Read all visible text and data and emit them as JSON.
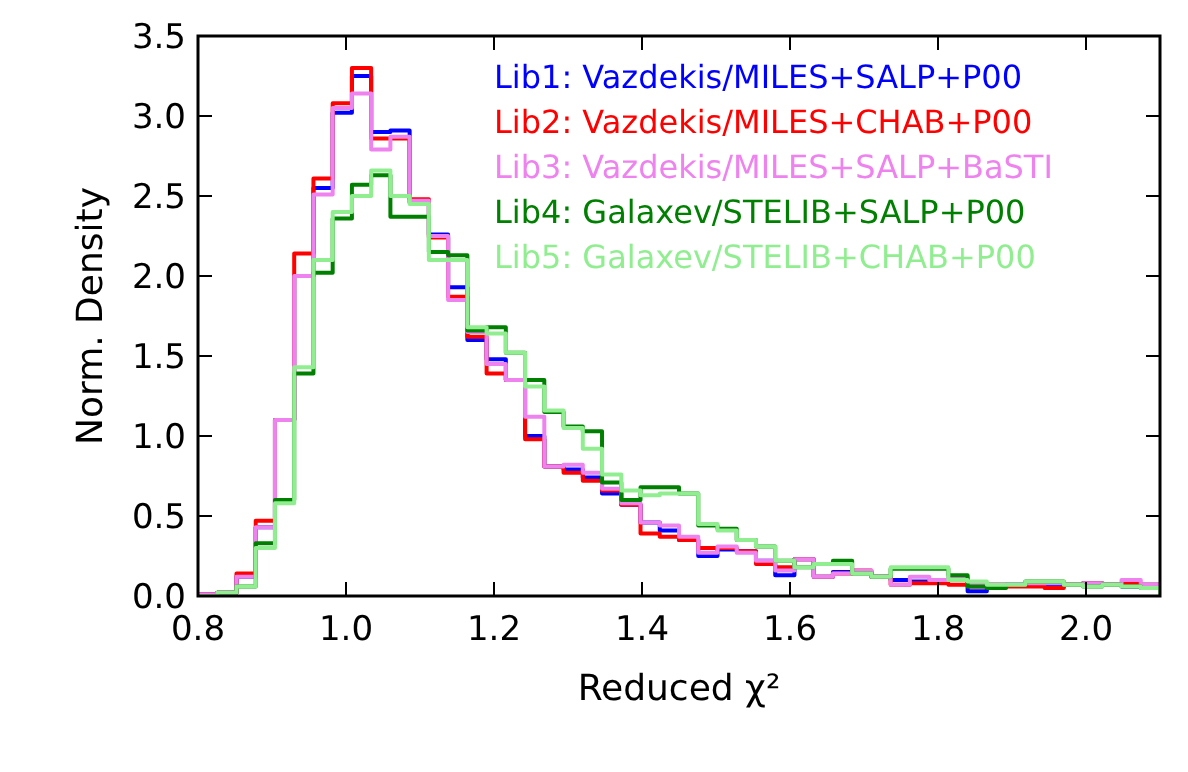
{
  "chart_data": {
    "type": "histogram",
    "xlabel": "Reduced χ²",
    "ylabel": "Norm. Density",
    "bins": [
      0.8,
      0.826,
      0.852,
      0.878,
      0.904,
      0.93,
      0.956,
      0.982,
      1.008,
      1.034,
      1.06,
      1.086,
      1.112,
      1.138,
      1.164,
      1.19,
      1.216,
      1.242,
      1.268,
      1.294,
      1.32,
      1.346,
      1.372,
      1.398,
      1.424,
      1.45,
      1.476,
      1.502,
      1.528,
      1.554,
      1.58,
      1.606,
      1.632,
      1.658,
      1.684,
      1.71,
      1.736,
      1.762,
      1.788,
      1.814,
      1.84,
      1.866,
      1.892,
      1.918,
      1.944,
      1.97,
      1.996,
      2.022,
      2.048,
      2.074,
      2.1
    ],
    "series": [
      {
        "name": "Lib1: Vazdekis/MILES+SALP+P00",
        "color": "#0000ff",
        "values": [
          0.01,
          0.02,
          0.12,
          0.43,
          1.1,
          2.0,
          2.55,
          3.02,
          3.25,
          2.9,
          2.91,
          2.46,
          2.26,
          1.93,
          1.6,
          1.48,
          1.35,
          1.0,
          0.81,
          0.79,
          0.74,
          0.64,
          0.57,
          0.46,
          0.41,
          0.35,
          0.25,
          0.29,
          0.28,
          0.22,
          0.13,
          0.23,
          0.12,
          0.15,
          0.15,
          0.12,
          0.1,
          0.09,
          0.1,
          0.11,
          0.03,
          0.07,
          0.07,
          0.07,
          0.06,
          0.07,
          0.08,
          0.07,
          0.06,
          0.07
        ]
      },
      {
        "name": "Lib2: Vazdekis/MILES+CHAB+P00",
        "color": "#ff0000",
        "values": [
          0.01,
          0.02,
          0.14,
          0.47,
          1.1,
          2.14,
          2.61,
          3.08,
          3.3,
          2.86,
          2.86,
          2.48,
          2.24,
          1.87,
          1.62,
          1.39,
          1.35,
          0.98,
          0.81,
          0.77,
          0.72,
          0.66,
          0.57,
          0.39,
          0.37,
          0.35,
          0.3,
          0.3,
          0.28,
          0.2,
          0.18,
          0.23,
          0.12,
          0.14,
          0.16,
          0.12,
          0.07,
          0.08,
          0.08,
          0.07,
          0.06,
          0.07,
          0.06,
          0.06,
          0.05,
          0.07,
          0.08,
          0.07,
          0.08,
          0.07
        ]
      },
      {
        "name": "Lib3: Vazdekis/MILES+SALP+BaSTI",
        "color": "#ee82ee",
        "values": [
          0.01,
          0.02,
          0.12,
          0.43,
          1.1,
          2.0,
          2.51,
          3.05,
          3.14,
          2.79,
          2.87,
          2.47,
          2.25,
          1.85,
          1.65,
          1.45,
          1.35,
          1.12,
          0.81,
          0.82,
          0.77,
          0.67,
          0.58,
          0.46,
          0.44,
          0.37,
          0.27,
          0.31,
          0.27,
          0.22,
          0.16,
          0.23,
          0.12,
          0.14,
          0.16,
          0.12,
          0.07,
          0.12,
          0.1,
          0.12,
          0.08,
          0.07,
          0.07,
          0.08,
          0.08,
          0.07,
          0.08,
          0.07,
          0.1,
          0.07
        ]
      },
      {
        "name": "Lib4: Galaxev/STELIB+SALP+P00",
        "color": "#008000",
        "values": [
          0,
          0.02,
          0.06,
          0.33,
          0.6,
          1.39,
          2.02,
          2.36,
          2.57,
          2.63,
          2.37,
          2.37,
          2.15,
          2.13,
          1.66,
          1.68,
          1.52,
          1.35,
          1.15,
          1.06,
          1.03,
          0.71,
          0.6,
          0.68,
          0.68,
          0.64,
          0.44,
          0.42,
          0.35,
          0.31,
          0.22,
          0.18,
          0.2,
          0.22,
          0.14,
          0.12,
          0.17,
          0.17,
          0.17,
          0.13,
          0.06,
          0.05,
          0.07,
          0.09,
          0.09,
          0.07,
          0.06,
          0.07,
          0.06,
          0.05
        ]
      },
      {
        "name": "Lib5: Galaxev/STELIB+CHAB+P00",
        "color": "#90ee90",
        "values": [
          0,
          0.02,
          0.06,
          0.3,
          0.58,
          1.43,
          2.1,
          2.4,
          2.5,
          2.66,
          2.5,
          2.45,
          2.1,
          2.1,
          1.68,
          1.64,
          1.52,
          1.31,
          1.16,
          1.05,
          0.92,
          0.76,
          0.66,
          0.63,
          0.64,
          0.64,
          0.45,
          0.41,
          0.35,
          0.31,
          0.22,
          0.18,
          0.2,
          0.2,
          0.14,
          0.12,
          0.18,
          0.18,
          0.18,
          0.1,
          0.09,
          0.07,
          0.07,
          0.09,
          0.09,
          0.07,
          0.06,
          0.07,
          0.06,
          0.05
        ]
      }
    ],
    "xlim": [
      0.8,
      2.1
    ],
    "xticks": [
      0.8,
      {
        "value": 1,
        "label": "1.0"
      },
      1.2,
      1.4,
      1.6,
      1.8,
      {
        "value": 2,
        "label": "2.0"
      }
    ],
    "ylim": [
      0,
      3.5
    ],
    "yticks": [
      {
        "value": 0,
        "label": "0.0"
      },
      0.5,
      {
        "value": 1,
        "label": "1.0"
      },
      1.5,
      {
        "value": 2,
        "label": "2.0"
      },
      2.5,
      {
        "value": 3,
        "label": "3.0"
      },
      3.5
    ],
    "legend": "top right",
    "grid": false
  }
}
